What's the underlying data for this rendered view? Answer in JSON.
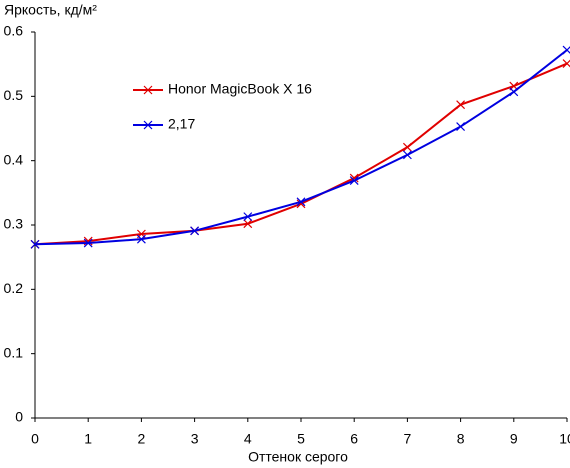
{
  "chart_data": {
    "type": "line",
    "y_label": "Яркость, кд/м²",
    "x_label": "Оттенок серого",
    "x": [
      0,
      1,
      2,
      3,
      4,
      5,
      6,
      7,
      8,
      9,
      10
    ],
    "series": [
      {
        "name": "Honor MagicBook X 16",
        "color": "#e00000",
        "values": [
          0.27,
          0.275,
          0.286,
          0.291,
          0.302,
          0.333,
          0.373,
          0.421,
          0.487,
          0.516,
          0.551
        ]
      },
      {
        "name": "2,17",
        "color": "#0000e0",
        "values": [
          0.27,
          0.272,
          0.278,
          0.291,
          0.313,
          0.336,
          0.369,
          0.409,
          0.453,
          0.507,
          0.572
        ]
      }
    ],
    "xlim": [
      0,
      10
    ],
    "xticks": [
      0,
      1,
      2,
      3,
      4,
      5,
      6,
      7,
      8,
      9,
      10
    ],
    "ylim": [
      0,
      0.6
    ],
    "yticks": [
      0,
      0.1,
      0.2,
      0.3,
      0.4,
      0.5,
      0.6
    ],
    "grid": false,
    "marker": "x"
  }
}
